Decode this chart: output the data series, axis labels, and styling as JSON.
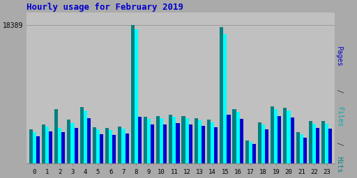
{
  "title": "Hourly usage for February 2019",
  "hours": [
    0,
    1,
    2,
    3,
    4,
    5,
    6,
    7,
    8,
    9,
    10,
    11,
    12,
    13,
    14,
    15,
    16,
    17,
    18,
    19,
    20,
    21,
    22,
    23
  ],
  "hits": [
    4500,
    5200,
    7200,
    5800,
    7500,
    4800,
    4700,
    4900,
    18389,
    6200,
    6300,
    6500,
    6300,
    6000,
    5800,
    18100,
    7200,
    3100,
    5500,
    7600,
    7400,
    4200,
    5600,
    5600
  ],
  "files": [
    4200,
    4900,
    4700,
    5400,
    7000,
    4500,
    4400,
    4600,
    17800,
    5900,
    6000,
    6200,
    6000,
    5700,
    5500,
    17200,
    6800,
    2900,
    5200,
    7200,
    7000,
    3900,
    5300,
    5300
  ],
  "pages": [
    3600,
    4300,
    4200,
    4700,
    6000,
    3900,
    3800,
    4000,
    6200,
    5200,
    5200,
    5400,
    5200,
    5000,
    4800,
    6500,
    5900,
    2600,
    4500,
    6300,
    6100,
    3400,
    4700,
    4600
  ],
  "ytick_val": 18389,
  "ytick_label": "18389",
  "color_hits": "#008080",
  "color_files": "#00ffff",
  "color_pages": "#0000cc",
  "bg_color": "#aaaaaa",
  "plot_bg": "#c0c0c0",
  "title_color": "#0000cc",
  "bar_width": 0.28,
  "ylim_max": 20000
}
